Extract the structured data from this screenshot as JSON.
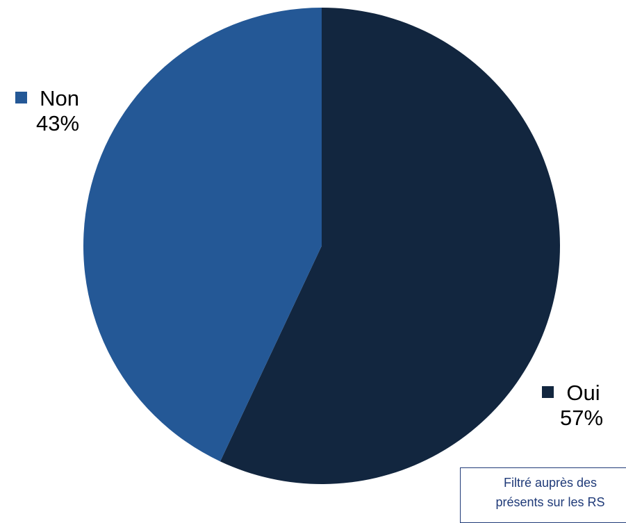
{
  "chart_data": {
    "type": "pie",
    "title": "",
    "slices": [
      {
        "label": "Oui",
        "value": 57,
        "display": "57%",
        "color": "#12263f"
      },
      {
        "label": "Non",
        "value": 43,
        "display": "43%",
        "color": "#245896"
      }
    ],
    "start_angle_deg": 0,
    "direction": "clockwise"
  },
  "note": {
    "line1": "Filtré auprès des",
    "line2": "présents sur les RS"
  }
}
